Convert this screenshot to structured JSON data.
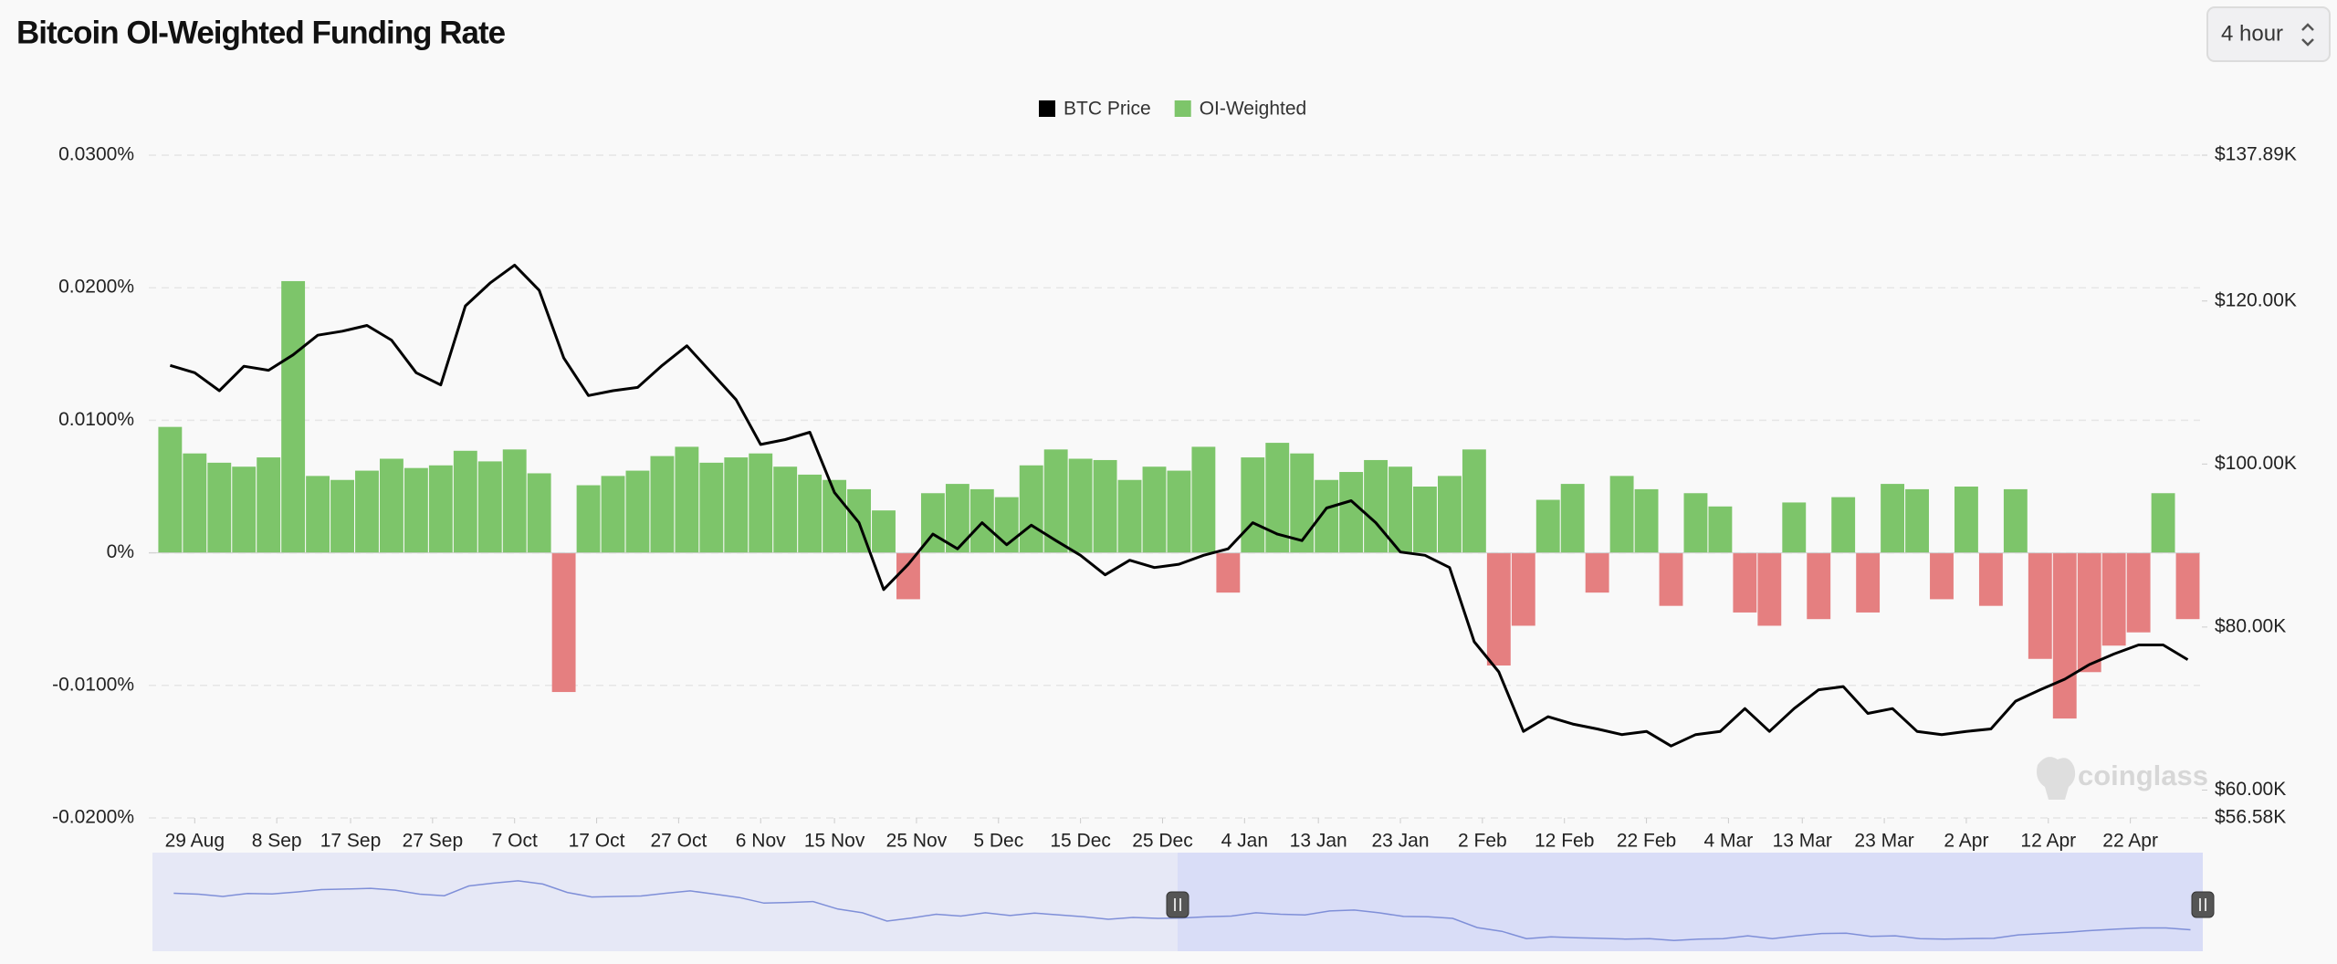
{
  "header": {
    "title": "Bitcoin OI-Weighted Funding Rate",
    "interval_selector": "4 hour"
  },
  "watermark": "coinglass",
  "chart_data": {
    "type": "combo",
    "x": [
      -3,
      0,
      3,
      6,
      9,
      12,
      15,
      18,
      21,
      24,
      27,
      30,
      33,
      36,
      39,
      42,
      45,
      48,
      51,
      54,
      57,
      60,
      63,
      66,
      69,
      72,
      75,
      78,
      81,
      84,
      87,
      90,
      93,
      96,
      99,
      102,
      105,
      108,
      111,
      114,
      117,
      120,
      123,
      126,
      129,
      132,
      135,
      138,
      141,
      144,
      147,
      150,
      153,
      156,
      159,
      162,
      165,
      168,
      171,
      174,
      177,
      180,
      183,
      186,
      189,
      192,
      195,
      198,
      201,
      204,
      207,
      210,
      213,
      216,
      219,
      222,
      225,
      228,
      231,
      234,
      237,
      240,
      243
    ],
    "xlim": [
      -5.6,
      244.5
    ],
    "xticks": [
      {
        "value": 0,
        "label": "29 Aug"
      },
      {
        "value": 10,
        "label": "8 Sep"
      },
      {
        "value": 19,
        "label": "17 Sep"
      },
      {
        "value": 29,
        "label": "27 Sep"
      },
      {
        "value": 39,
        "label": "7 Oct"
      },
      {
        "value": 49,
        "label": "17 Oct"
      },
      {
        "value": 59,
        "label": "27 Oct"
      },
      {
        "value": 69,
        "label": "6 Nov"
      },
      {
        "value": 78,
        "label": "15 Nov"
      },
      {
        "value": 88,
        "label": "25 Nov"
      },
      {
        "value": 98,
        "label": "5 Dec"
      },
      {
        "value": 108,
        "label": "15 Dec"
      },
      {
        "value": 118,
        "label": "25 Dec"
      },
      {
        "value": 128,
        "label": "4 Jan"
      },
      {
        "value": 137,
        "label": "13 Jan"
      },
      {
        "value": 147,
        "label": "23 Jan"
      },
      {
        "value": 157,
        "label": "2 Feb"
      },
      {
        "value": 167,
        "label": "12 Feb"
      },
      {
        "value": 177,
        "label": "22 Feb"
      },
      {
        "value": 187,
        "label": "4 Mar"
      },
      {
        "value": 196,
        "label": "13 Mar"
      },
      {
        "value": 206,
        "label": "23 Mar"
      },
      {
        "value": 216,
        "label": "2 Apr"
      },
      {
        "value": 226,
        "label": "12 Apr"
      },
      {
        "value": 236,
        "label": "22 Apr"
      }
    ],
    "ylim": [
      -0.02,
      0.03
    ],
    "yticks": [
      {
        "value": 0.03,
        "label": "0.0300%"
      },
      {
        "value": 0.02,
        "label": "0.0200%"
      },
      {
        "value": 0.01,
        "label": "0.0100%"
      },
      {
        "value": 0,
        "label": "0%"
      },
      {
        "value": -0.01,
        "label": "-0.0100%"
      },
      {
        "value": -0.02,
        "label": "-0.0200%"
      }
    ],
    "y2lim": [
      56580,
      137890
    ],
    "y2ticks": [
      {
        "value": 137890,
        "label": "$137.89K"
      },
      {
        "value": 120000,
        "label": "$120.00K"
      },
      {
        "value": 100000,
        "label": "$100.00K"
      },
      {
        "value": 80000,
        "label": "$80.00K"
      },
      {
        "value": 60000,
        "label": "$60.00K"
      },
      {
        "value": 56580,
        "label": "$56.58K"
      }
    ],
    "grid": true,
    "legend": "top",
    "series": [
      {
        "name": "BTC Price",
        "type": "line",
        "axis": "y2",
        "color": "#000000",
        "values": [
          112100,
          111200,
          109000,
          112000,
          111500,
          113400,
          115800,
          116300,
          117000,
          115200,
          111200,
          109700,
          119400,
          122200,
          124400,
          121300,
          113000,
          108400,
          109000,
          109400,
          112100,
          114500,
          111200,
          107900,
          102400,
          103000,
          103900,
          96500,
          92800,
          84600,
          87700,
          91400,
          89600,
          92800,
          90100,
          92500,
          90600,
          88800,
          86400,
          88200,
          87300,
          87700,
          88800,
          89600,
          92800,
          91400,
          90600,
          94600,
          95500,
          92800,
          89200,
          88800,
          87300,
          78200,
          74500,
          67200,
          69000,
          68100,
          67500,
          66800,
          67200,
          65400,
          66800,
          67200,
          70000,
          67200,
          70000,
          72300,
          72700,
          69400,
          70000,
          67200,
          66800,
          67200,
          67500,
          70900,
          72300,
          73600,
          75400,
          76700,
          77800,
          77800,
          76000
        ]
      },
      {
        "name": "OI-Weighted",
        "type": "bar",
        "color": "#7dc56a",
        "negative_color": "#e57f80",
        "values": [
          0.0095,
          0.0075,
          0.0068,
          0.0065,
          0.0072,
          0.0205,
          0.0058,
          0.0055,
          0.0062,
          0.0071,
          0.0064,
          0.0066,
          0.0077,
          0.0069,
          0.0078,
          0.006,
          -0.0105,
          0.0051,
          0.0058,
          0.0062,
          0.0073,
          0.008,
          0.0068,
          0.0072,
          0.0075,
          0.0065,
          0.0059,
          0.0055,
          0.0048,
          0.0032,
          -0.0035,
          0.0045,
          0.0052,
          0.0048,
          0.0042,
          0.0066,
          0.0078,
          0.0071,
          0.007,
          0.0055,
          0.0065,
          0.0062,
          0.008,
          -0.003,
          0.0072,
          0.0083,
          0.0075,
          0.0055,
          0.0061,
          0.007,
          0.0065,
          0.005,
          0.0058,
          0.0078,
          -0.0085,
          -0.0055,
          0.004,
          0.0052,
          -0.003,
          0.0058,
          0.0048,
          -0.004,
          0.0045,
          0.0035,
          -0.0045,
          -0.0055,
          0.0038,
          -0.005,
          0.0042,
          -0.0045,
          0.0052,
          0.0048,
          -0.0035,
          0.005,
          -0.004,
          0.0048,
          -0.008,
          -0.0125,
          -0.009,
          -0.007,
          -0.006,
          0.0045,
          -0.005
        ]
      }
    ]
  }
}
